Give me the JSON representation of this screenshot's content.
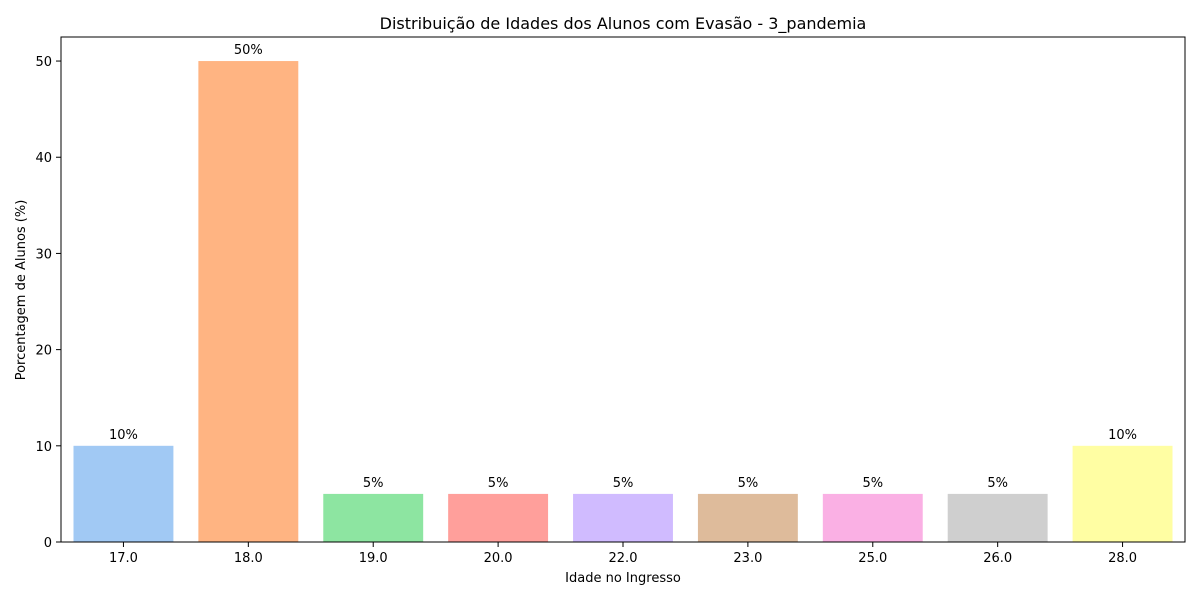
{
  "chart_data": {
    "type": "bar",
    "title": "Distribuição de Idades dos Alunos com Evasão - 3_pandemia",
    "xlabel": "Idade no Ingresso",
    "ylabel": "Porcentagem de Alunos (%)",
    "categories": [
      "17.0",
      "18.0",
      "19.0",
      "20.0",
      "22.0",
      "23.0",
      "25.0",
      "26.0",
      "28.0"
    ],
    "values": [
      10,
      50,
      5,
      5,
      5,
      5,
      5,
      5,
      10
    ],
    "data_labels": [
      "10%",
      "50%",
      "5%",
      "5%",
      "5%",
      "5%",
      "5%",
      "5%",
      "10%"
    ],
    "colors": [
      "#a1c9f4",
      "#ffb482",
      "#8de5a1",
      "#ff9f9b",
      "#d0bbff",
      "#debb9b",
      "#fab0e4",
      "#cfcfcf",
      "#fffea3"
    ],
    "ylim": [
      0,
      52.5
    ],
    "yticks": [
      0,
      10,
      20,
      30,
      40,
      50
    ],
    "grid": false,
    "legend": "none"
  }
}
